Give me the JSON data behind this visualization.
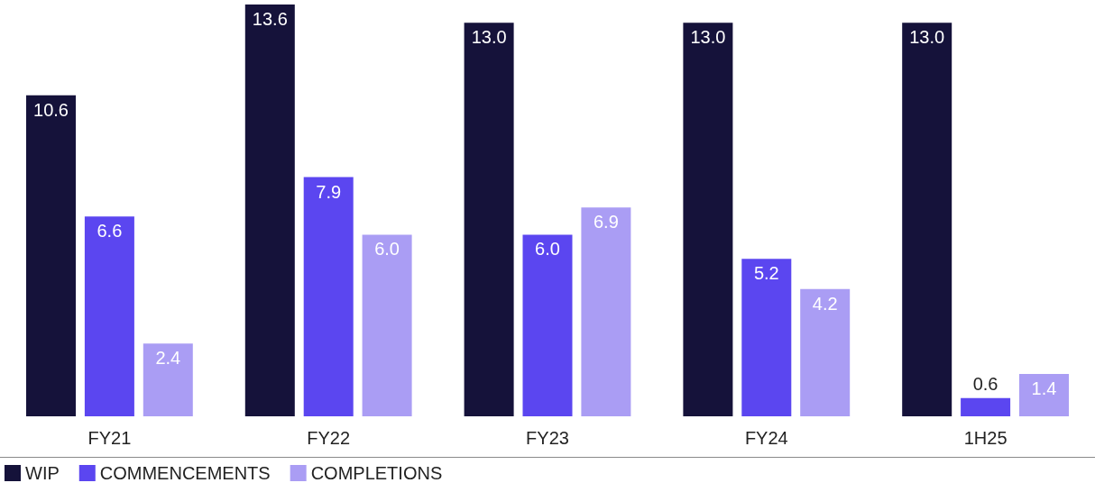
{
  "chart_data": {
    "type": "bar",
    "categories": [
      "FY21",
      "FY22",
      "FY23",
      "FY24",
      "1H25"
    ],
    "series": [
      {
        "name": "WIP",
        "color": "#15123a",
        "values": [
          10.6,
          13.6,
          13.0,
          13.0,
          13.0
        ],
        "value_labels": [
          "10.6",
          "13.6",
          "13.0",
          "13.0",
          "13.0"
        ]
      },
      {
        "name": "COMMENCEMENTS",
        "color": "#5b46f0",
        "values": [
          6.6,
          7.9,
          6.0,
          5.2,
          0.6
        ],
        "value_labels": [
          "6.6",
          "7.9",
          "6.0",
          "5.2",
          "0.6"
        ]
      },
      {
        "name": "COMPLETIONS",
        "color": "#aa9df4",
        "values": [
          2.4,
          6.0,
          6.9,
          4.2,
          1.4
        ],
        "value_labels": [
          "2.4",
          "6.0",
          "6.9",
          "4.2",
          "1.4"
        ]
      }
    ],
    "legend": "bottom left"
  }
}
